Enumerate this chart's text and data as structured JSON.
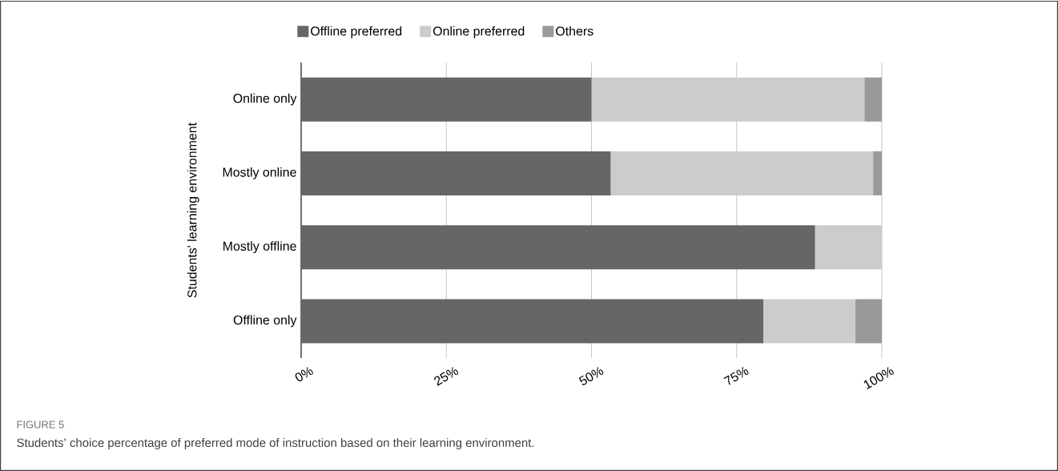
{
  "chart_data": {
    "type": "bar",
    "orientation": "horizontal",
    "stacked": true,
    "ylabel": "Students' learning environment",
    "categories": [
      "Online only",
      "Mostly online",
      "Mostly offline",
      "Offline only"
    ],
    "series": [
      {
        "name": "Offline preferred",
        "color": "#666666",
        "values": [
          50,
          53.3,
          88.5,
          79.6
        ]
      },
      {
        "name": "Online preferred",
        "color": "#cccccc",
        "values": [
          47,
          45.2,
          11.5,
          15.8
        ]
      },
      {
        "name": "Others",
        "color": "#999999",
        "values": [
          3,
          1.5,
          null,
          4.6
        ]
      }
    ],
    "xlim": [
      0,
      100
    ],
    "xticks": [
      {
        "value": 0,
        "label": "0%"
      },
      {
        "value": 25,
        "label": "25%"
      },
      {
        "value": 50,
        "label": "50%"
      },
      {
        "value": 75,
        "label": "75%"
      },
      {
        "value": 100,
        "label": "100%"
      }
    ],
    "grid": "x",
    "legend": "top",
    "annotations": [
      "FIGURE 5",
      "Students’ choice percentage of preferred mode of instruction based on their learning environment."
    ]
  }
}
